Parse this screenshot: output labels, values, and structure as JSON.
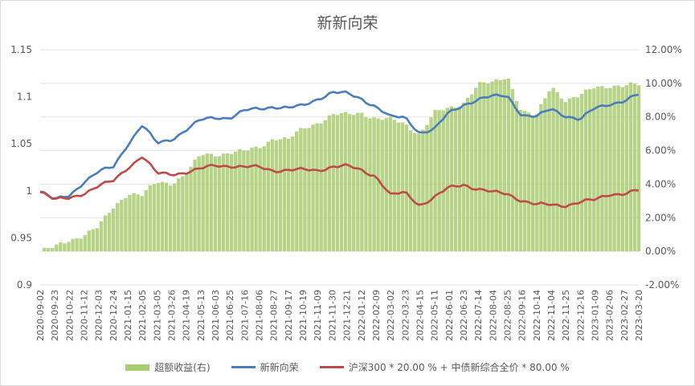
{
  "chart_data": {
    "type": "line",
    "title": "新新向荣",
    "x_categories": [
      "2020-09-02",
      "2020-09-23",
      "2020-10-22",
      "2020-11-12",
      "2020-12-03",
      "2020-12-24",
      "2021-01-15",
      "2021-02-05",
      "2021-03-05",
      "2021-03-26",
      "2021-04-19",
      "2021-05-13",
      "2021-06-03",
      "2021-06-25",
      "2021-07-16",
      "2021-08-06",
      "2021-08-27",
      "2021-09-17",
      "2021-10-19",
      "2021-11-09",
      "2021-11-30",
      "2021-12-21",
      "2022-01-12",
      "2022-02-09",
      "2022-03-02",
      "2022-03-23",
      "2022-04-15",
      "2022-05-11",
      "2022-06-01",
      "2022-06-23",
      "2022-07-14",
      "2022-08-04",
      "2022-08-25",
      "2022-09-16",
      "2022-10-14",
      "2022-11-04",
      "2022-11-25",
      "2022-12-16",
      "2023-01-09",
      "2023-02-06",
      "2023-02-27",
      "2023-03-20"
    ],
    "y_left": {
      "min": 0.9,
      "max": 1.15,
      "ticks": [
        "0.9",
        "0.95",
        "1",
        "1.05",
        "1.1",
        "1.15"
      ]
    },
    "y_right": {
      "min": -2,
      "max": 12,
      "ticks": [
        "-2.00%",
        "0.00%",
        "2.00%",
        "4.00%",
        "6.00%",
        "8.00%",
        "10.00%",
        "12.00%"
      ]
    },
    "series": [
      {
        "name": "超额收益(右)",
        "axis": "right",
        "kind": "bar",
        "color": "#a9cb72",
        "values": [
          0.0,
          0.2,
          0.7,
          1.0,
          1.4,
          2.6,
          3.5,
          3.3,
          4.1,
          4.1,
          4.6,
          5.7,
          5.8,
          5.9,
          5.9,
          6.2,
          6.8,
          6.6,
          7.3,
          7.7,
          8.1,
          8.1,
          8.3,
          7.9,
          7.8,
          7.6,
          7.0,
          8.2,
          8.5,
          8.9,
          9.9,
          10.0,
          10.5,
          8.3,
          8.0,
          9.9,
          9.0,
          9.2,
          9.8,
          9.9,
          9.8,
          9.9
        ]
      },
      {
        "name": "新新向荣",
        "axis": "left",
        "kind": "line",
        "color": "#4a7ebb",
        "values": [
          1.0,
          0.99,
          0.995,
          1.01,
          1.02,
          1.025,
          1.05,
          1.07,
          1.05,
          1.055,
          1.065,
          1.075,
          1.078,
          1.078,
          1.085,
          1.087,
          1.09,
          1.088,
          1.09,
          1.098,
          1.105,
          1.103,
          1.098,
          1.09,
          1.078,
          1.078,
          1.062,
          1.065,
          1.083,
          1.092,
          1.097,
          1.1,
          1.102,
          1.08,
          1.078,
          1.088,
          1.08,
          1.075,
          1.088,
          1.093,
          1.095,
          1.102
        ]
      },
      {
        "name": "沪深300 * 20.00 % + 中债新综合全价 * 80.00 %",
        "axis": "left",
        "kind": "line",
        "color": "#be4b48",
        "values": [
          1.0,
          0.99,
          0.992,
          0.998,
          1.005,
          1.01,
          1.025,
          1.037,
          1.018,
          1.018,
          1.02,
          1.023,
          1.027,
          1.027,
          1.025,
          1.025,
          1.022,
          1.022,
          1.022,
          1.022,
          1.026,
          1.026,
          1.022,
          1.016,
          0.995,
          0.998,
          0.985,
          0.993,
          1.003,
          1.007,
          1.002,
          0.998,
          0.997,
          0.99,
          0.985,
          0.985,
          0.985,
          0.988,
          0.99,
          0.997,
          0.997,
          1.0
        ]
      }
    ],
    "legend_position": "bottom",
    "grid": "horizontal"
  }
}
